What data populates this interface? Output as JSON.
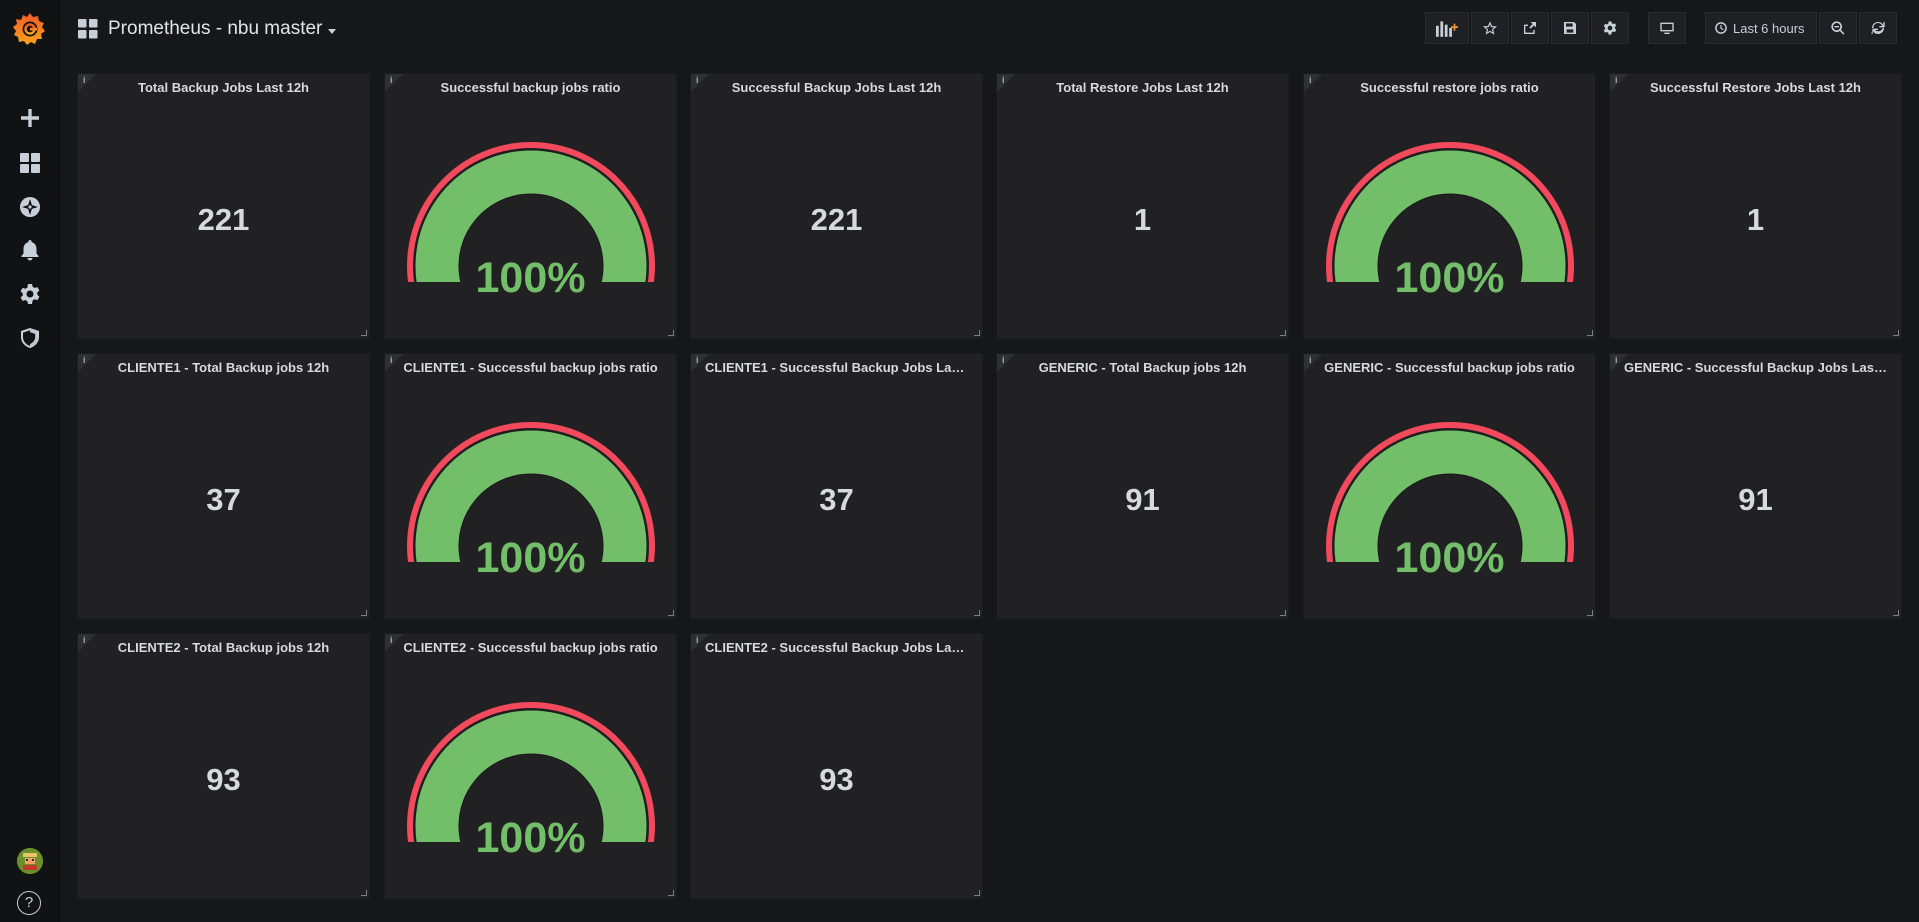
{
  "dashboard": {
    "title": "Prometheus - nbu master"
  },
  "toolbar": {
    "time_range": "Last 6 hours"
  },
  "sidebar": {
    "items": [
      {
        "name": "plus-icon"
      },
      {
        "name": "dashboards-icon"
      },
      {
        "name": "compass-icon"
      },
      {
        "name": "bell-icon"
      },
      {
        "name": "gear-icon"
      },
      {
        "name": "shield-icon"
      }
    ],
    "help": "?"
  },
  "colors": {
    "gauge_ok": "#73bf69",
    "gauge_threshold": "#f2495c",
    "background": "#161719",
    "panel": "#212124"
  },
  "panels": [
    {
      "title": "Total Backup Jobs Last 12h",
      "type": "stat",
      "value": "221"
    },
    {
      "title": "Successful backup jobs ratio",
      "type": "gauge",
      "value": "100%",
      "fraction": 1.0
    },
    {
      "title": "Successful Backup Jobs Last 12h",
      "type": "stat",
      "value": "221"
    },
    {
      "title": "Total Restore Jobs Last 12h",
      "type": "stat",
      "value": "1"
    },
    {
      "title": "Successful restore jobs ratio",
      "type": "gauge",
      "value": "100%",
      "fraction": 1.0
    },
    {
      "title": "Successful Restore Jobs Last 12h",
      "type": "stat",
      "value": "1"
    },
    {
      "title": "CLIENTE1 - Total Backup jobs 12h",
      "type": "stat",
      "value": "37"
    },
    {
      "title": "CLIENTE1 - Successful backup jobs ratio",
      "type": "gauge",
      "value": "100%",
      "fraction": 1.0
    },
    {
      "title": "CLIENTE1 - Successful Backup Jobs Last ...",
      "type": "stat",
      "value": "37"
    },
    {
      "title": "GENERIC - Total Backup jobs 12h",
      "type": "stat",
      "value": "91"
    },
    {
      "title": "GENERIC - Successful backup jobs ratio",
      "type": "gauge",
      "value": "100%",
      "fraction": 1.0
    },
    {
      "title": "GENERIC - Successful Backup Jobs Last 1...",
      "type": "stat",
      "value": "91"
    },
    {
      "title": "CLIENTE2 - Total Backup jobs 12h",
      "type": "stat",
      "value": "93"
    },
    {
      "title": "CLIENTE2 - Successful backup jobs ratio",
      "type": "gauge",
      "value": "100%",
      "fraction": 1.0
    },
    {
      "title": "CLIENTE2 - Successful Backup Jobs Last ...",
      "type": "stat",
      "value": "93"
    }
  ]
}
